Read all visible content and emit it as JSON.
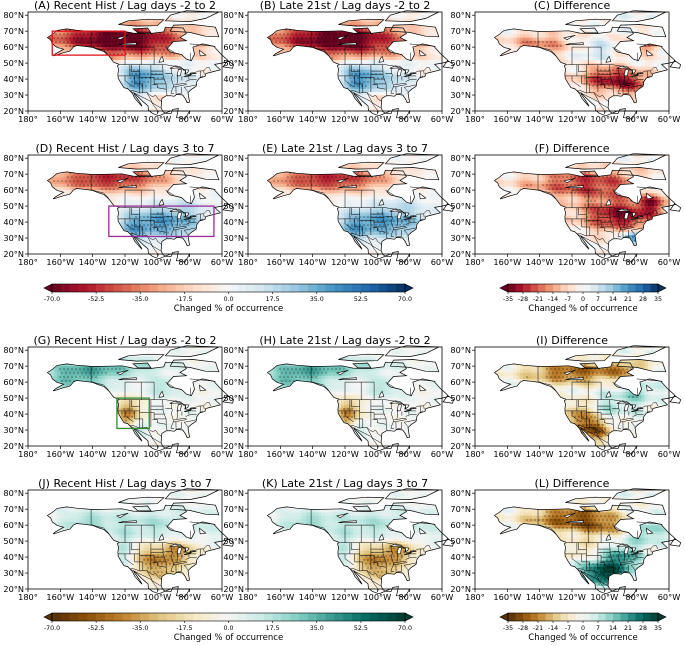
{
  "chart_data": {
    "type": "heatmap",
    "description_units": "Changed % of occurrence",
    "lon_ticks": [
      "180°",
      "160°W",
      "140°W",
      "120°W",
      "100°W",
      "80°W",
      "60°W"
    ],
    "lat_ticks": [
      "80°N",
      "70°N",
      "60°N",
      "50°N",
      "40°N",
      "30°N",
      "20°N"
    ],
    "panels": [
      {
        "title": "(A) Recent Hist / Lag days -2 to 2",
        "pattern": "a",
        "palette": "rdbu",
        "box": {
          "color": "#e0151b",
          "lon": [
            -165,
            -120
          ],
          "lat": [
            55,
            70
          ]
        }
      },
      {
        "title": "(B) Late 21st / Lag days -2 to 2",
        "pattern": "a",
        "palette": "rdbu"
      },
      {
        "title": "(C) Difference",
        "pattern": "c",
        "palette": "rdbu"
      },
      {
        "title": "(D) Recent Hist / Lag days 3 to 7",
        "pattern": "d",
        "palette": "rdbu",
        "box": {
          "color": "#9b2d9b",
          "lon": [
            -130,
            -65
          ],
          "lat": [
            31,
            50
          ]
        }
      },
      {
        "title": "(E) Late 21st / Lag days 3 to 7",
        "pattern": "d",
        "palette": "rdbu"
      },
      {
        "title": "(F) Difference",
        "pattern": "f",
        "palette": "rdbu"
      },
      {
        "title": "(G) Recent Hist / Lag days -2 to 2",
        "pattern": "g",
        "palette": "brbg",
        "box": {
          "color": "#2e8b2e",
          "lon": [
            -125,
            -105
          ],
          "lat": [
            31,
            50
          ]
        }
      },
      {
        "title": "(H) Late 21st / Lag days -2 to 2",
        "pattern": "g",
        "palette": "brbg"
      },
      {
        "title": "(I) Difference",
        "pattern": "i",
        "palette": "brbg"
      },
      {
        "title": "(J) Recent Hist / Lag days 3 to 7",
        "pattern": "j",
        "palette": "brbg"
      },
      {
        "title": "(K) Late 21st / Lag days 3 to 7",
        "pattern": "j",
        "palette": "brbg"
      },
      {
        "title": "(L) Difference",
        "pattern": "l",
        "palette": "brbg"
      }
    ],
    "colorbars": [
      {
        "palette": "rdbu",
        "range": [
          -70,
          70
        ],
        "ticks": [
          "-70.0",
          "-52.5",
          "-35.0",
          "-17.5",
          "0.0",
          "17.5",
          "35.0",
          "52.5",
          "70.0"
        ],
        "label": "Changed % of occurrence"
      },
      {
        "palette": "rdbu",
        "range": [
          -35,
          35
        ],
        "ticks": [
          "-35",
          "-28",
          "-21",
          "-14",
          "-7",
          "0",
          "7",
          "14",
          "21",
          "28",
          "35"
        ],
        "label": "Changed % of occurrence"
      },
      {
        "palette": "brbg",
        "range": [
          -70,
          70
        ],
        "ticks": [
          "-70.0",
          "-52.5",
          "-35.0",
          "-17.5",
          "0.0",
          "17.5",
          "35.0",
          "52.5",
          "70.0"
        ],
        "label": "Changed % of occurrence"
      },
      {
        "palette": "brbg",
        "range": [
          -35,
          35
        ],
        "ticks": [
          "-35",
          "-28",
          "-21",
          "-14",
          "-7",
          "0",
          "7",
          "14",
          "21",
          "28",
          "35"
        ],
        "label": "Changed % of occurrence"
      }
    ],
    "palettes": {
      "rdbu": [
        "#67001f",
        "#b2182b",
        "#d6604d",
        "#f4a582",
        "#fddbc7",
        "#f7f7f7",
        "#d1e5f0",
        "#92c5de",
        "#4393c3",
        "#2166ac",
        "#053061"
      ],
      "brbg": [
        "#543005",
        "#8c510a",
        "#bf812d",
        "#dfc27d",
        "#f6e8c3",
        "#f5f5f5",
        "#c7eae5",
        "#80cdc1",
        "#35978f",
        "#01665e",
        "#003c30"
      ]
    }
  }
}
